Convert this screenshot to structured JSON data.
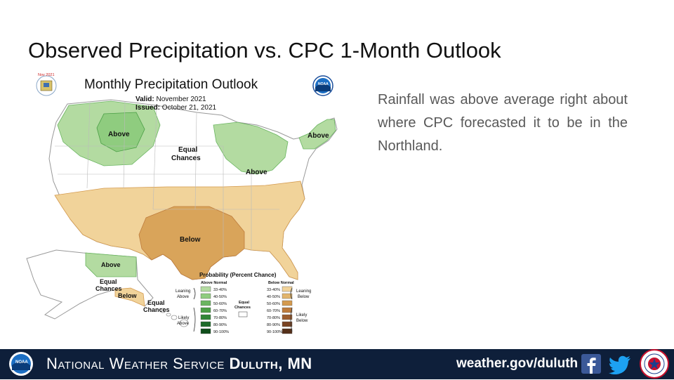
{
  "slide": {
    "title": "Observed Precipitation vs. CPC 1-Month Outlook",
    "body_text": "Rainfall was above average right about where CPC forecasted it to be in the Northland."
  },
  "map": {
    "title": "Monthly Precipitation Outlook",
    "valid_label": "Valid:",
    "valid_value": "November 2021",
    "issued_label": "Issued:",
    "issued_value": "October 21, 2021",
    "doc_badge": "Nov 2021",
    "noaa_logo_text": "NOAA",
    "region_labels": {
      "above_northwest": "Above",
      "equal_chances_line1": "Equal",
      "equal_chances_line2": "Chances",
      "above_great_lakes": "Above",
      "above_new_england": "Above",
      "below_south": "Below",
      "alaska_above": "Above",
      "alaska_equal_line1": "Equal",
      "alaska_equal_line2": "Chances",
      "alaska_below": "Below",
      "hawaii_equal_line1": "Equal",
      "hawaii_equal_line2": "Chances"
    },
    "legend": {
      "title": "Probability (Percent Chance)",
      "above_header": "Above Normal",
      "below_header": "Below Normal",
      "above_bins": [
        "33-40%",
        "40-50%",
        "50-60%",
        "60-70%",
        "70-80%",
        "80-90%",
        "90-100%"
      ],
      "below_bins": [
        "33-40%",
        "40-50%",
        "50-60%",
        "60-70%",
        "70-80%",
        "80-90%",
        "90-100%"
      ],
      "above_colors": [
        "#b3dba1",
        "#8fcc7f",
        "#6ab560",
        "#4a9e45",
        "#2f8636",
        "#1c6b28",
        "#0f4e1b"
      ],
      "below_colors": [
        "#f1d39a",
        "#e2b56c",
        "#d49a4e",
        "#bd7b3c",
        "#9c5d2e",
        "#7a4423",
        "#55301a"
      ],
      "leaning_above_line1": "Leaning",
      "leaning_above_line2": "Above",
      "likely_above_line1": "Likely",
      "likely_above_line2": "Above",
      "leaning_below_line1": "Leaning",
      "leaning_below_line2": "Below",
      "likely_below_line1": "Likely",
      "likely_below_line2": "Below",
      "equal_line1": "Equal",
      "equal_line2": "Chances"
    }
  },
  "footer": {
    "org_prefix": "National Weather Service ",
    "org_office": "Duluth, MN",
    "url": "weather.gov/duluth",
    "nws_logo_text": "NOAA",
    "facebook_icon": "facebook-icon",
    "twitter_icon": "twitter-icon",
    "nws_seal_icon": "nws-seal-icon"
  },
  "colors": {
    "footer_bg": "#0e1f3a",
    "above_light": "#b3dba1",
    "above_mid": "#8fcc7f",
    "below_light": "#f1d39a",
    "below_mid": "#d9a45a"
  }
}
